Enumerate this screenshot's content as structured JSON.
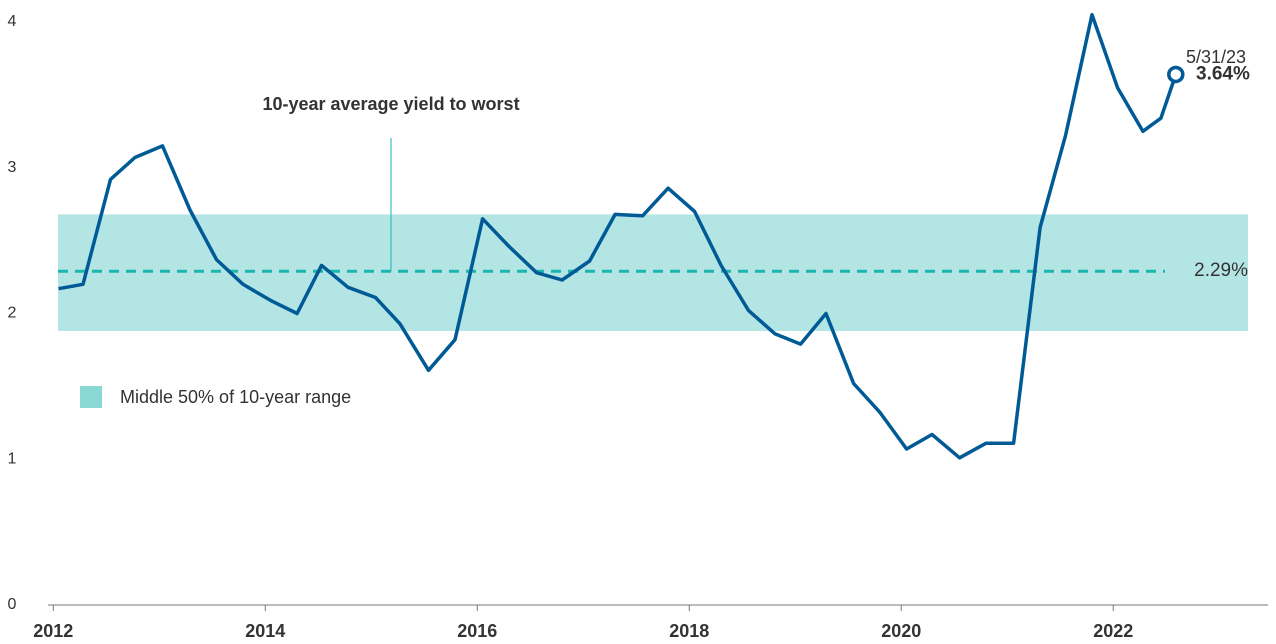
{
  "chart_data": {
    "type": "line",
    "x": [
      2012.05,
      2012.28,
      2012.54,
      2012.77,
      2013.03,
      2013.29,
      2013.54,
      2013.79,
      2014.05,
      2014.3,
      2014.53,
      2014.78,
      2015.04,
      2015.27,
      2015.54,
      2015.79,
      2016.05,
      2016.3,
      2016.56,
      2016.8,
      2017.06,
      2017.3,
      2017.56,
      2017.8,
      2018.05,
      2018.3,
      2018.56,
      2018.81,
      2019.05,
      2019.29,
      2019.55,
      2019.8,
      2020.05,
      2020.29,
      2020.55,
      2020.8,
      2021.06,
      2021.31,
      2021.55,
      2021.8,
      2022.04,
      2022.28,
      2022.45,
      2022.59
    ],
    "series": [
      {
        "color": "#005a96",
        "values": [
          2.17,
          2.2,
          2.92,
          3.07,
          3.15,
          2.71,
          2.37,
          2.2,
          2.09,
          2.0,
          2.33,
          2.18,
          2.11,
          1.93,
          1.61,
          1.82,
          2.65,
          2.46,
          2.28,
          2.23,
          2.36,
          2.68,
          2.67,
          2.86,
          2.7,
          2.33,
          2.02,
          1.86,
          1.79,
          2.0,
          1.52,
          1.32,
          1.07,
          1.17,
          1.01,
          1.11,
          1.11,
          2.59,
          3.22,
          4.05,
          3.55,
          3.25,
          3.34,
          3.64
        ]
      }
    ],
    "end_date_label": "5/31/23",
    "end_value_label": "3.64%",
    "average": {
      "name": "10-year average yield to worst",
      "value": 2.29,
      "label": "2.29%",
      "color": "#1ab5ad"
    },
    "band": {
      "name": "Middle 50% of 10-year range",
      "low": 1.88,
      "high": 2.68,
      "color": "#b3e5e4"
    },
    "xlim": [
      2011.95,
      2023.46
    ],
    "xticks": [
      2012,
      2014,
      2016,
      2018,
      2020,
      2022
    ],
    "ylim": [
      0,
      4
    ],
    "yticks": [
      0,
      1,
      2,
      3,
      4
    ]
  }
}
